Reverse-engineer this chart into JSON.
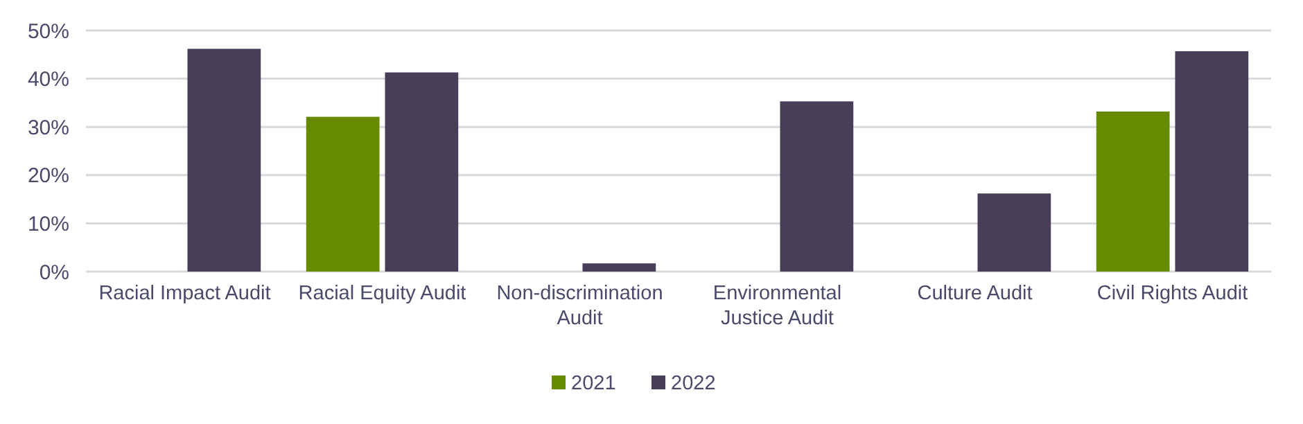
{
  "chart_data": {
    "type": "bar",
    "categories": [
      "Racial Impact Audit",
      "Racial Equity Audit",
      "Non-discrimination Audit",
      "Environmental Justice Audit",
      "Culture Audit",
      "Civil Rights Audit"
    ],
    "series": [
      {
        "name": "2021",
        "color": "#668a00",
        "values": [
          null,
          32.1,
          null,
          null,
          null,
          33.2
        ]
      },
      {
        "name": "2022",
        "color": "#483e57",
        "values": [
          46.2,
          41.3,
          1.7,
          35.3,
          16.2,
          45.7
        ]
      }
    ],
    "ylim": [
      0,
      50
    ],
    "yticks": [
      {
        "value": 0,
        "label": "0%"
      },
      {
        "value": 10,
        "label": "10%"
      },
      {
        "value": 20,
        "label": "20%"
      },
      {
        "value": 30,
        "label": "30%"
      },
      {
        "value": 40,
        "label": "40%"
      },
      {
        "value": 50,
        "label": "50%"
      }
    ],
    "grid": "y",
    "legend": "bottom"
  }
}
